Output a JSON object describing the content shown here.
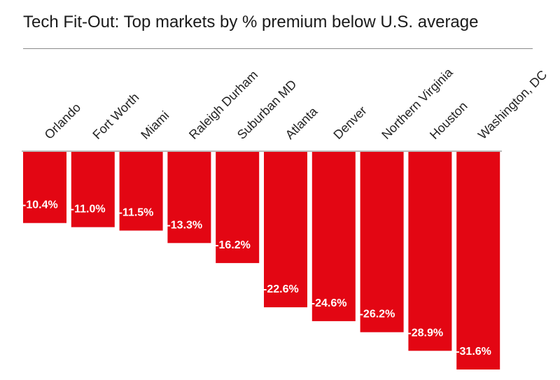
{
  "chart_data": {
    "type": "bar",
    "title": "Tech Fit-Out: Top markets by % premium below U.S. average",
    "categories": [
      "Orlando",
      "Fort Worth",
      "Miami",
      "Raleigh Durham",
      "Suburban MD",
      "Atlanta",
      "Denver",
      "Northern Virginia",
      "Houston",
      "Washington, DC"
    ],
    "values": [
      -10.4,
      -11.0,
      -11.5,
      -13.3,
      -16.2,
      -22.6,
      -24.6,
      -26.2,
      -28.9,
      -31.6
    ],
    "value_labels": [
      "-10.4%",
      "-11.0%",
      "-11.5%",
      "-13.3%",
      "-16.2%",
      "-22.6%",
      "-24.6%",
      "-26.2%",
      "-28.9%",
      "-31.6%"
    ],
    "xlabel": "",
    "ylabel": "",
    "ylim": [
      -31.6,
      0
    ],
    "grid": false,
    "legend": "none",
    "bar_color": "#e30613",
    "baseline_color": "#bbbbbb"
  }
}
